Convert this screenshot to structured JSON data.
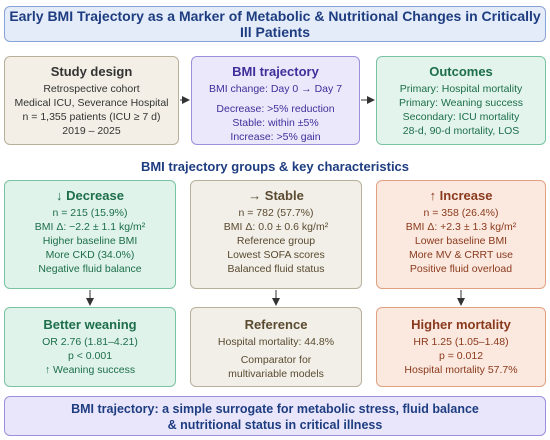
{
  "title": "Early BMI Trajectory as a Marker of Metabolic & Nutritional Changes in Critically Ill Patients",
  "study_design": {
    "header": "Study design",
    "lines": [
      "Retrospective cohort",
      "Medical ICU, Severance Hospital",
      "n = 1,355 patients (ICU ≥ 7 d)",
      "2019 – 2025"
    ]
  },
  "bmi_trajectory": {
    "header": "BMI trajectory",
    "subtitle": "BMI change: Day 0 → Day 7",
    "lines": [
      "Decrease: >5% reduction",
      "Stable: within ±5%",
      "Increase: >5% gain"
    ]
  },
  "outcomes": {
    "header": "Outcomes",
    "lines": [
      "Primary: Hospital mortality",
      "Primary: Weaning success",
      "Secondary: ICU mortality",
      "28-d, 90-d mortality, LOS"
    ]
  },
  "section_title": "BMI trajectory groups & key characteristics",
  "groups": {
    "decrease": {
      "header": "↓ Decrease",
      "lines": [
        "n = 215 (15.9%)",
        "BMI Δ: −2.2 ± 1.1 kg/m²",
        "Higher baseline BMI",
        "More CKD (34.0%)",
        "Negative fluid balance"
      ]
    },
    "stable": {
      "header": "→ Stable",
      "lines": [
        "n = 782 (57.7%)",
        "BMI Δ: 0.0 ± 0.6 kg/m²",
        "Reference group",
        "Lowest SOFA scores",
        "Balanced fluid status"
      ]
    },
    "increase": {
      "header": "↑ Increase",
      "lines": [
        "n = 358 (26.4%)",
        "BMI Δ: +2.3 ± 1.3 kg/m²",
        "Lower baseline BMI",
        "More MV & CRRT use",
        "Positive fluid overload"
      ]
    }
  },
  "results": {
    "decrease": {
      "header": "Better weaning",
      "lines": [
        "OR 2.76 (1.81–4.21)",
        "p < 0.001",
        "↑ Weaning success"
      ]
    },
    "stable": {
      "header": "Reference",
      "lines": [
        "Hospital mortality: 44.8%",
        "Comparator for",
        "multivariable models"
      ]
    },
    "increase": {
      "header": "Higher mortality",
      "lines": [
        "HR 1.25 (1.05–1.48)",
        "p = 0.012",
        "Hospital mortality 57.7%"
      ]
    }
  },
  "conclusion": {
    "line1": "BMI trajectory: a simple surrogate for metabolic stress, fluid balance",
    "line2": "& nutritional status in critical illness"
  },
  "colors": {
    "title_blue": "#1e3d80",
    "green_fill": "#dff3ea",
    "beige_fill": "#f1efe8",
    "peach_fill": "#fbe9e0",
    "lavender_fill": "#ebe8fb"
  }
}
